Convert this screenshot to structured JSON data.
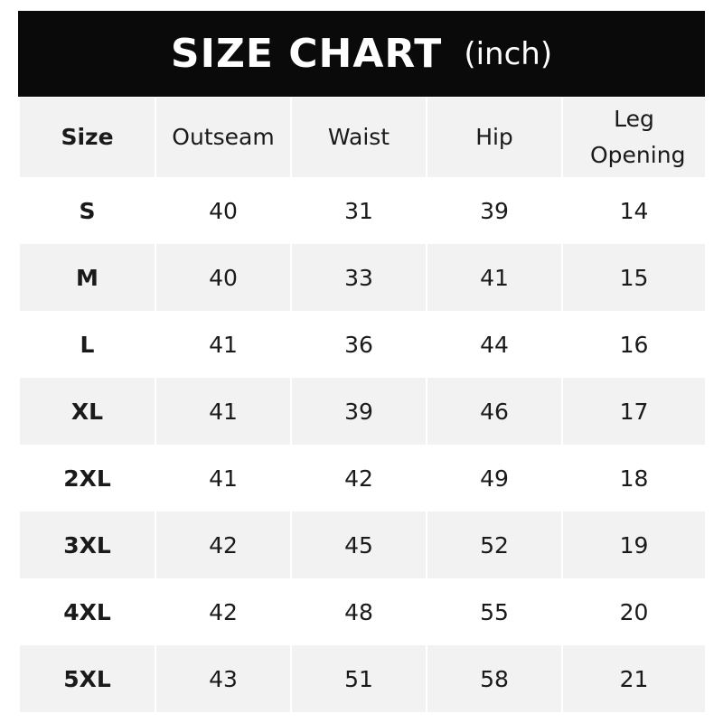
{
  "chart_data": {
    "type": "table",
    "title": "SIZE CHART",
    "unit": "(inch)",
    "columns": [
      "Size",
      "Outseam",
      "Waist",
      "Hip",
      "Leg Opening"
    ],
    "rows": [
      [
        "S",
        "40",
        "31",
        "39",
        "14"
      ],
      [
        "M",
        "40",
        "33",
        "41",
        "15"
      ],
      [
        "L",
        "41",
        "36",
        "44",
        "16"
      ],
      [
        "XL",
        "41",
        "39",
        "46",
        "17"
      ],
      [
        "2XL",
        "41",
        "42",
        "49",
        "18"
      ],
      [
        "3XL",
        "42",
        "45",
        "52",
        "19"
      ],
      [
        "4XL",
        "42",
        "48",
        "55",
        "20"
      ],
      [
        "5XL",
        "43",
        "51",
        "58",
        "21"
      ]
    ],
    "colors": {
      "banner": "#0a0a0a",
      "stripe": "#f2f2f2"
    }
  }
}
